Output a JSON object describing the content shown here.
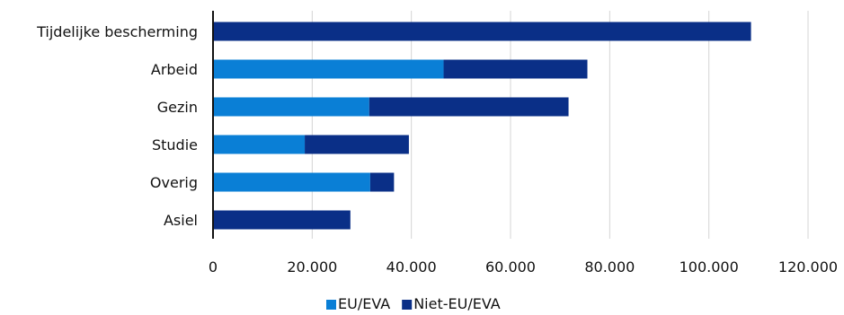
{
  "chart_data": {
    "type": "bar",
    "orientation": "horizontal",
    "stacked": true,
    "categories": [
      "Tijdelijke bescherming",
      "Arbeid",
      "Gezin",
      "Studie",
      "Overig",
      "Asiel"
    ],
    "series": [
      {
        "name": "EU/EVA",
        "color": "#0a7fd6",
        "values": [
          0,
          46500,
          31500,
          18500,
          31700,
          0
        ]
      },
      {
        "name": "Niet-EU/EVA",
        "color": "#0a2f87",
        "values": [
          108500,
          29000,
          40200,
          21000,
          4800,
          27700
        ]
      }
    ],
    "xlim": [
      0,
      120000
    ],
    "x_ticks": [
      0,
      20000,
      40000,
      60000,
      80000,
      100000,
      120000
    ],
    "x_tick_labels": [
      "0",
      "20.000",
      "40.000",
      "60.000",
      "80.000",
      "100.000",
      "120.000"
    ],
    "grid": "vertical",
    "legend_position": "bottom"
  }
}
